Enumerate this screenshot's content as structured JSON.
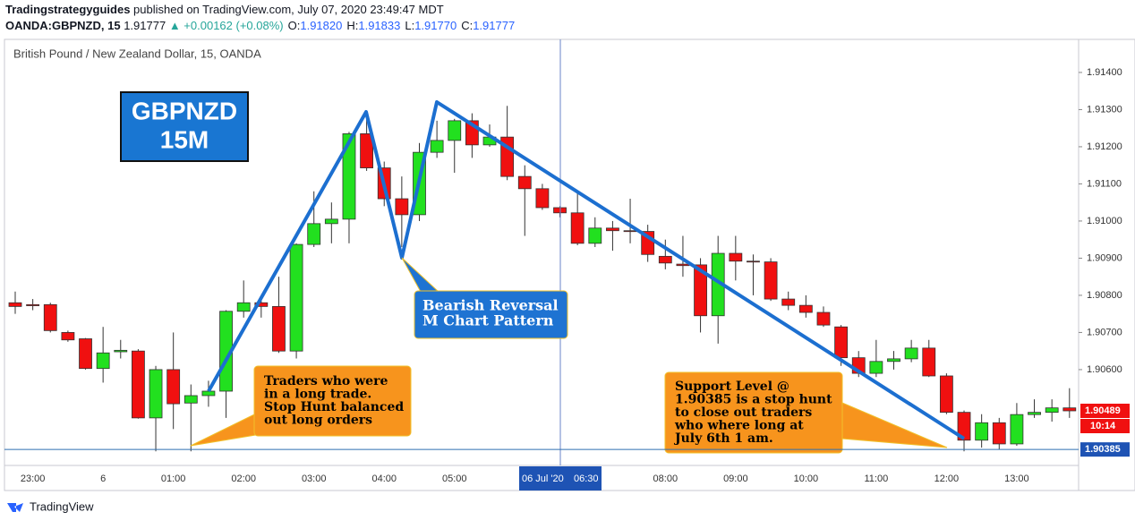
{
  "header": {
    "author": "Tradingstrategyguides",
    "published": "published on TradingView.com, July 07, 2020 23:49:47 MDT",
    "symbol": "OANDA:GBPNZD, 15",
    "last": "1.91777",
    "change": "▲ +0.00162 (+0.08%)",
    "ohlc": [
      {
        "label": "O:",
        "value": "1.91820"
      },
      {
        "label": "H:",
        "value": "1.91833"
      },
      {
        "label": "L:",
        "value": "1.91770"
      },
      {
        "label": "C:",
        "value": "1.91777"
      }
    ]
  },
  "footer": {
    "brand": "TradingView"
  },
  "chart_data": {
    "type": "candlestick",
    "title": "British Pound / New Zealand Dollar, 15, OANDA",
    "categories": [
      null,
      "23:00",
      null,
      null,
      null,
      "6",
      null,
      null,
      null,
      "01:00",
      null,
      null,
      null,
      "02:00",
      null,
      null,
      null,
      "03:00",
      null,
      null,
      null,
      "04:00",
      null,
      null,
      null,
      "05:00",
      null,
      null,
      null,
      null,
      null,
      null,
      null,
      null,
      null,
      null,
      null,
      "08:00",
      null,
      null,
      null,
      "09:00",
      null,
      null,
      null,
      "10:00",
      null,
      null,
      null,
      "11:00",
      null,
      null,
      null,
      "12:00",
      null,
      null,
      null,
      "13:00",
      null,
      null,
      null
    ],
    "open": [
      1.9078,
      1.90775,
      1.90775,
      1.907,
      1.90683,
      1.90603,
      1.90648,
      1.9065,
      1.9047,
      1.906,
      1.9051,
      1.9053,
      1.90542,
      1.90757,
      1.9078,
      1.9077,
      1.9065,
      1.90937,
      1.90993,
      1.91005,
      1.91235,
      1.91143,
      1.9106,
      1.91017,
      1.91185,
      1.91217,
      1.9127,
      1.91205,
      1.91226,
      1.9112,
      1.91087,
      1.91036,
      1.91022,
      1.9094,
      1.90981,
      1.90974,
      1.90972,
      1.90905,
      1.90884,
      1.90882,
      1.90745,
      1.90913,
      1.90892,
      1.9089,
      1.9079,
      1.90773,
      1.90754,
      1.90715,
      1.90632,
      1.9059,
      1.90622,
      1.90629,
      1.90658,
      1.90583,
      1.90485,
      1.9041,
      1.90457,
      1.904,
      1.90479,
      1.90485,
      1.90497
    ],
    "high": [
      1.9081,
      1.9079,
      1.9078,
      1.90705,
      1.90685,
      1.90715,
      1.9068,
      1.90655,
      1.9061,
      1.907,
      1.9056,
      1.9057,
      1.9076,
      1.9084,
      1.9079,
      1.9085,
      1.9094,
      1.9108,
      1.9105,
      1.9124,
      1.9128,
      1.9116,
      1.9112,
      1.9121,
      1.9127,
      1.91275,
      1.9129,
      1.9126,
      1.9131,
      1.9115,
      1.911,
      1.9104,
      1.9108,
      1.9101,
      1.91,
      1.9106,
      1.9099,
      1.9095,
      1.9096,
      1.909,
      1.9096,
      1.9096,
      1.9091,
      1.909,
      1.9081,
      1.908,
      1.9077,
      1.9072,
      1.9065,
      1.9068,
      1.9065,
      1.9068,
      1.9068,
      1.9059,
      1.9049,
      1.9048,
      1.9047,
      1.9051,
      1.9052,
      1.9052,
      1.9055
    ],
    "low": [
      1.9075,
      1.9076,
      1.907,
      1.90675,
      1.906,
      1.90565,
      1.9063,
      1.90468,
      1.9038,
      1.9044,
      1.9038,
      1.905,
      1.9047,
      1.9074,
      1.9074,
      1.90645,
      1.9063,
      1.9093,
      1.9094,
      1.9094,
      1.91135,
      1.9104,
      1.9093,
      1.91,
      1.9117,
      1.9113,
      1.9117,
      1.912,
      1.9111,
      1.9096,
      1.9103,
      1.9101,
      1.90935,
      1.9093,
      1.9092,
      1.9094,
      1.9089,
      1.9087,
      1.9085,
      1.907,
      1.9067,
      1.9084,
      1.908,
      1.90785,
      1.9076,
      1.9074,
      1.90715,
      1.9061,
      1.9058,
      1.9058,
      1.906,
      1.9062,
      1.9058,
      1.9048,
      1.9038,
      1.9039,
      1.90385,
      1.90395,
      1.9047,
      1.9046,
      1.9047
    ],
    "close": [
      1.9077,
      1.90772,
      1.90705,
      1.9068,
      1.90603,
      1.90645,
      1.90652,
      1.9047,
      1.906,
      1.90508,
      1.9053,
      1.90542,
      1.90757,
      1.9078,
      1.9077,
      1.9065,
      1.90937,
      1.90993,
      1.91005,
      1.91235,
      1.91143,
      1.9106,
      1.91017,
      1.91185,
      1.91217,
      1.9127,
      1.91205,
      1.91226,
      1.9112,
      1.91087,
      1.91036,
      1.91022,
      1.9094,
      1.90981,
      1.90974,
      1.90972,
      1.9091,
      1.90887,
      1.9088,
      1.90745,
      1.90913,
      1.90892,
      1.9089,
      1.9079,
      1.90773,
      1.90754,
      1.9072,
      1.90632,
      1.9059,
      1.90622,
      1.90629,
      1.90658,
      1.90583,
      1.90485,
      1.9041,
      1.90457,
      1.904,
      1.90479,
      1.90485,
      1.90497,
      1.90489
    ],
    "up_color": "#22e01f",
    "down_color": "#f01010",
    "ylim": [
      1.90342,
      1.91489
    ],
    "yticks": [
      {
        "value": 1.914,
        "label": "1.91400"
      },
      {
        "value": 1.913,
        "label": "1.91300"
      },
      {
        "value": 1.912,
        "label": "1.91200"
      },
      {
        "value": 1.911,
        "label": "1.91100"
      },
      {
        "value": 1.91,
        "label": "1.91000"
      },
      {
        "value": 1.909,
        "label": "1.90900"
      },
      {
        "value": 1.908,
        "label": "1.90800"
      },
      {
        "value": 1.907,
        "label": "1.90700"
      },
      {
        "value": 1.906,
        "label": "1.90600"
      }
    ],
    "last_price": {
      "value": 1.90489,
      "label": "1.90489"
    },
    "countdown": "10:14",
    "support_level": {
      "value": 1.90385,
      "label": "1.90385"
    },
    "crosshair": {
      "date": "06 Jul '20",
      "time": "06:30"
    },
    "annotations": {
      "pair": "GBPNZD",
      "timeframe": "15M",
      "pattern": [
        "Bearish Reversal",
        "M Chart Pattern"
      ],
      "left_note": [
        "Traders who were",
        "in a long trade.",
        "Stop Hunt balanced",
        "out long orders"
      ],
      "right_note": [
        "Support Level @",
        "1.90385 is a stop hunt",
        "to close out traders",
        "who where long at",
        "July 6th 1 am."
      ]
    }
  }
}
